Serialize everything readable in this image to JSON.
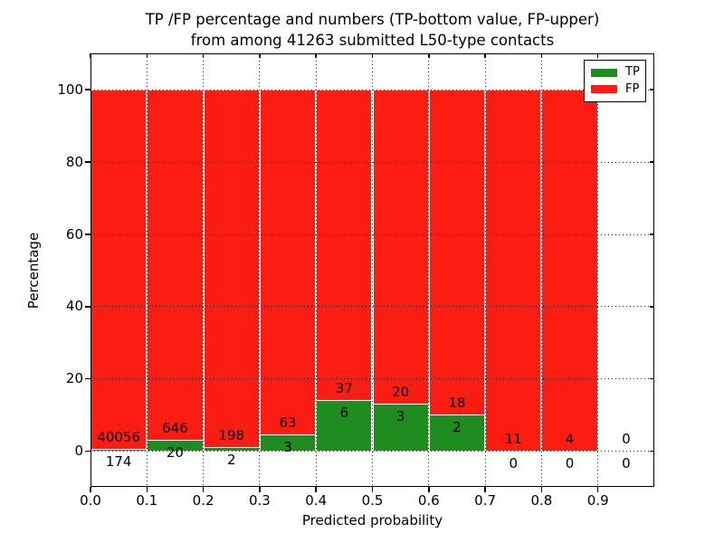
{
  "chart_data": {
    "type": "bar",
    "stacked": true,
    "title_line1": "TP /FP percentage and numbers (TP-bottom value, FP-upper)",
    "title_line2": "from among 41263 submitted L50-type contacts",
    "xlabel": "Predicted probability",
    "ylabel": "Percentage",
    "xlim": [
      0.0,
      1.0
    ],
    "ylim": [
      -10,
      110
    ],
    "grid": true,
    "x_tick_labels": [
      "0.0",
      "0.1",
      "0.2",
      "0.3",
      "0.4",
      "0.5",
      "0.6",
      "0.7",
      "0.8",
      "0.9"
    ],
    "y_tick_values": [
      0,
      20,
      40,
      60,
      80,
      100
    ],
    "colors": {
      "tp": "#1e8c1e",
      "fp": "#fb1c12"
    },
    "legend": {
      "position": "upper right",
      "entries": [
        {
          "label": "TP",
          "color": "#1e8c1e"
        },
        {
          "label": "FP",
          "color": "#fb1c12"
        }
      ]
    },
    "bins": [
      {
        "range": [
          0.0,
          0.1
        ],
        "tp": 174,
        "fp": 40056
      },
      {
        "range": [
          0.1,
          0.2
        ],
        "tp": 20,
        "fp": 646
      },
      {
        "range": [
          0.2,
          0.3
        ],
        "tp": 2,
        "fp": 198
      },
      {
        "range": [
          0.3,
          0.4
        ],
        "tp": 3,
        "fp": 63
      },
      {
        "range": [
          0.4,
          0.5
        ],
        "tp": 6,
        "fp": 37
      },
      {
        "range": [
          0.5,
          0.6
        ],
        "tp": 3,
        "fp": 20
      },
      {
        "range": [
          0.6,
          0.7
        ],
        "tp": 2,
        "fp": 18
      },
      {
        "range": [
          0.7,
          0.8
        ],
        "tp": 0,
        "fp": 11
      },
      {
        "range": [
          0.8,
          0.9
        ],
        "tp": 0,
        "fp": 4
      },
      {
        "range": [
          0.9,
          1.0
        ],
        "tp": 0,
        "fp": 0
      }
    ]
  }
}
